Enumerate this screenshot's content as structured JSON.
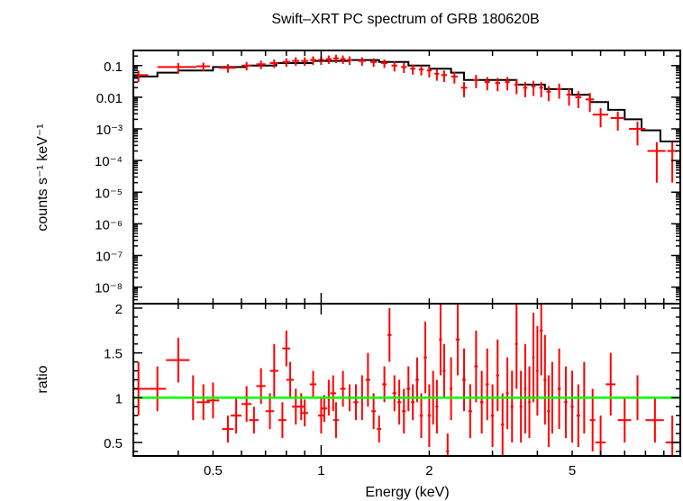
{
  "chart_data": {
    "type": "scatter",
    "title": "Swift–XRT PC spectrum of GRB 180620B",
    "xlabel": "Energy (keV)",
    "x_scale": "log",
    "xlim": [
      0.3,
      10
    ],
    "x_ticks": [
      "0.5",
      "1",
      "2",
      "5"
    ],
    "x_tick_values": [
      0.5,
      1,
      2,
      5
    ],
    "colors": {
      "data": "#ff0000",
      "model": "#000000",
      "unity": "#00ff00"
    },
    "panels": [
      {
        "name": "spectrum",
        "ylabel": "counts s⁻¹ keV⁻¹",
        "y_scale": "log",
        "ylim": [
          3e-09,
          0.3
        ],
        "y_ticks": [
          "0.1",
          "0.01",
          "10⁻³",
          "10⁻⁴",
          "10⁻⁵",
          "10⁻⁶",
          "10⁻⁷",
          "10⁻⁸"
        ],
        "y_tick_values": [
          0.1,
          0.01,
          0.001,
          0.0001,
          1e-05,
          1e-06,
          1e-07,
          1e-08
        ],
        "data": {
          "x": [
            0.31,
            0.4,
            0.47,
            0.55,
            0.62,
            0.68,
            0.74,
            0.8,
            0.85,
            0.9,
            0.95,
            1.0,
            1.05,
            1.1,
            1.15,
            1.2,
            1.3,
            1.4,
            1.5,
            1.6,
            1.7,
            1.8,
            1.9,
            2.0,
            2.1,
            2.2,
            2.35,
            2.5,
            2.7,
            2.9,
            3.1,
            3.3,
            3.5,
            3.7,
            3.9,
            4.1,
            4.3,
            4.6,
            4.9,
            5.2,
            5.6,
            6.0,
            6.7,
            7.6,
            8.6,
            9.5
          ],
          "y": [
            0.05,
            0.09,
            0.095,
            0.085,
            0.1,
            0.11,
            0.12,
            0.13,
            0.14,
            0.14,
            0.15,
            0.15,
            0.16,
            0.17,
            0.16,
            0.15,
            0.14,
            0.13,
            0.12,
            0.1,
            0.09,
            0.08,
            0.075,
            0.07,
            0.055,
            0.05,
            0.045,
            0.02,
            0.035,
            0.03,
            0.028,
            0.03,
            0.025,
            0.02,
            0.022,
            0.02,
            0.015,
            0.018,
            0.012,
            0.01,
            0.0085,
            0.0028,
            0.0022,
            0.001,
            0.0002,
            0.0002
          ],
          "xerr": [
            0.02,
            0.05,
            0.02,
            0.03,
            0.02,
            0.02,
            0.02,
            0.02,
            0.02,
            0.02,
            0.02,
            0.02,
            0.02,
            0.02,
            0.02,
            0.02,
            0.03,
            0.03,
            0.03,
            0.03,
            0.03,
            0.03,
            0.03,
            0.03,
            0.03,
            0.04,
            0.05,
            0.05,
            0.05,
            0.05,
            0.05,
            0.05,
            0.05,
            0.05,
            0.05,
            0.05,
            0.06,
            0.08,
            0.08,
            0.1,
            0.15,
            0.3,
            0.3,
            0.4,
            0.5,
            0.3
          ],
          "yerr_rel": [
            0.4,
            0.35,
            0.3,
            0.3,
            0.3,
            0.3,
            0.3,
            0.3,
            0.3,
            0.3,
            0.3,
            0.3,
            0.3,
            0.3,
            0.3,
            0.3,
            0.3,
            0.3,
            0.3,
            0.35,
            0.35,
            0.35,
            0.35,
            0.4,
            0.4,
            0.4,
            0.4,
            0.5,
            0.45,
            0.45,
            0.45,
            0.45,
            0.5,
            0.5,
            0.5,
            0.5,
            0.5,
            0.5,
            0.55,
            0.55,
            0.6,
            0.6,
            0.6,
            0.7,
            0.9,
            0.9
          ]
        },
        "model": {
          "x": [
            0.3,
            0.35,
            0.35,
            0.4,
            0.4,
            0.5,
            0.5,
            0.62,
            0.62,
            0.75,
            0.75,
            0.95,
            0.95,
            1.2,
            1.2,
            1.45,
            1.45,
            1.75,
            1.75,
            2.0,
            2.0,
            2.3,
            2.3,
            2.5,
            2.5,
            3.5,
            3.5,
            4.2,
            4.2,
            5.0,
            5.0,
            5.6,
            5.6,
            6.3,
            6.3,
            7.0,
            7.0,
            7.8,
            7.8,
            8.8,
            8.8,
            10.0
          ],
          "y": [
            0.045,
            0.045,
            0.06,
            0.06,
            0.07,
            0.07,
            0.09,
            0.09,
            0.1,
            0.1,
            0.12,
            0.12,
            0.14,
            0.14,
            0.15,
            0.15,
            0.13,
            0.13,
            0.1,
            0.1,
            0.08,
            0.08,
            0.06,
            0.06,
            0.035,
            0.035,
            0.025,
            0.025,
            0.018,
            0.018,
            0.012,
            0.012,
            0.007,
            0.007,
            0.004,
            0.004,
            0.002,
            0.002,
            0.0009,
            0.0009,
            0.0004,
            0.0004
          ]
        }
      },
      {
        "name": "ratio",
        "ylabel": "ratio",
        "y_scale": "linear",
        "ylim": [
          0.35,
          2.05
        ],
        "y_ticks": [
          "0.5",
          "1",
          "1.5",
          "2"
        ],
        "y_tick_values": [
          0.5,
          1,
          1.5,
          2
        ],
        "unity_line": 1,
        "data": {
          "x": [
            0.31,
            0.35,
            0.4,
            0.44,
            0.47,
            0.5,
            0.55,
            0.58,
            0.62,
            0.65,
            0.68,
            0.72,
            0.74,
            0.78,
            0.8,
            0.82,
            0.85,
            0.88,
            0.9,
            0.95,
            1.0,
            1.02,
            1.05,
            1.08,
            1.1,
            1.15,
            1.2,
            1.25,
            1.3,
            1.35,
            1.4,
            1.45,
            1.5,
            1.55,
            1.6,
            1.65,
            1.7,
            1.75,
            1.8,
            1.85,
            1.9,
            1.95,
            2.0,
            2.05,
            2.1,
            2.15,
            2.2,
            2.25,
            2.3,
            2.4,
            2.5,
            2.6,
            2.7,
            2.8,
            2.9,
            3.0,
            3.1,
            3.2,
            3.3,
            3.4,
            3.5,
            3.6,
            3.7,
            3.8,
            3.9,
            4.0,
            4.1,
            4.2,
            4.3,
            4.4,
            4.6,
            4.8,
            5.0,
            5.2,
            5.4,
            5.7,
            6.0,
            6.4,
            7.0,
            7.6,
            8.5,
            9.5
          ],
          "y": [
            1.1,
            1.1,
            1.42,
            1.0,
            0.95,
            0.97,
            0.65,
            0.8,
            0.93,
            0.75,
            1.13,
            0.85,
            1.3,
            0.75,
            1.55,
            1.2,
            0.9,
            0.9,
            0.83,
            1.15,
            0.8,
            0.88,
            1.0,
            1.05,
            0.75,
            1.1,
            1.0,
            0.95,
            1.0,
            1.2,
            0.85,
            0.65,
            1.15,
            1.7,
            1.05,
            0.95,
            0.85,
            1.1,
            0.95,
            1.2,
            0.8,
            1.45,
            0.8,
            1.0,
            0.9,
            1.65,
            1.3,
            0.4,
            1.1,
            1.65,
            1.2,
            0.85,
            1.35,
            0.95,
            1.15,
            0.8,
            1.25,
            0.7,
            1.05,
            0.9,
            1.6,
            0.9,
            1.1,
            0.95,
            1.45,
            1.3,
            1.75,
            1.2,
            0.85,
            1.0,
            1.1,
            0.95,
            0.9,
            0.8,
            1.0,
            0.75,
            0.5,
            1.15,
            0.75,
            1.0,
            0.75,
            0.5
          ],
          "xerr": [
            0.02,
            0.02,
            0.03,
            0.02,
            0.02,
            0.02,
            0.02,
            0.02,
            0.02,
            0.02,
            0.02,
            0.02,
            0.02,
            0.02,
            0.02,
            0.02,
            0.02,
            0.02,
            0.02,
            0.02,
            0.02,
            0.02,
            0.02,
            0.02,
            0.02,
            0.02,
            0.02,
            0.02,
            0.02,
            0.02,
            0.02,
            0.02,
            0.02,
            0.02,
            0.02,
            0.02,
            0.02,
            0.02,
            0.02,
            0.02,
            0.02,
            0.02,
            0.02,
            0.02,
            0.02,
            0.02,
            0.02,
            0.02,
            0.02,
            0.03,
            0.03,
            0.03,
            0.03,
            0.03,
            0.03,
            0.03,
            0.03,
            0.03,
            0.03,
            0.03,
            0.03,
            0.03,
            0.03,
            0.03,
            0.03,
            0.03,
            0.04,
            0.04,
            0.04,
            0.04,
            0.05,
            0.05,
            0.05,
            0.06,
            0.06,
            0.1,
            0.2,
            0.2,
            0.3,
            0.4,
            0.5,
            0.4
          ],
          "yerr": [
            0.3,
            0.25,
            0.25,
            0.25,
            0.2,
            0.2,
            0.15,
            0.2,
            0.2,
            0.15,
            0.2,
            0.2,
            0.3,
            0.2,
            0.2,
            0.2,
            0.2,
            0.15,
            0.15,
            0.15,
            0.2,
            0.15,
            0.2,
            0.2,
            0.2,
            0.2,
            0.15,
            0.2,
            0.25,
            0.3,
            0.2,
            0.15,
            0.2,
            0.3,
            0.2,
            0.25,
            0.25,
            0.25,
            0.2,
            0.25,
            0.25,
            0.4,
            0.35,
            0.3,
            0.3,
            0.4,
            0.3,
            0.2,
            0.35,
            0.4,
            0.35,
            0.3,
            0.4,
            0.35,
            0.4,
            0.35,
            0.4,
            0.35,
            0.4,
            0.4,
            0.5,
            0.4,
            0.5,
            0.4,
            0.5,
            0.5,
            0.5,
            0.5,
            0.4,
            0.4,
            0.45,
            0.4,
            0.4,
            0.35,
            0.4,
            0.35,
            0.3,
            0.35,
            0.25,
            0.25,
            0.25,
            0.3
          ]
        }
      }
    ]
  }
}
